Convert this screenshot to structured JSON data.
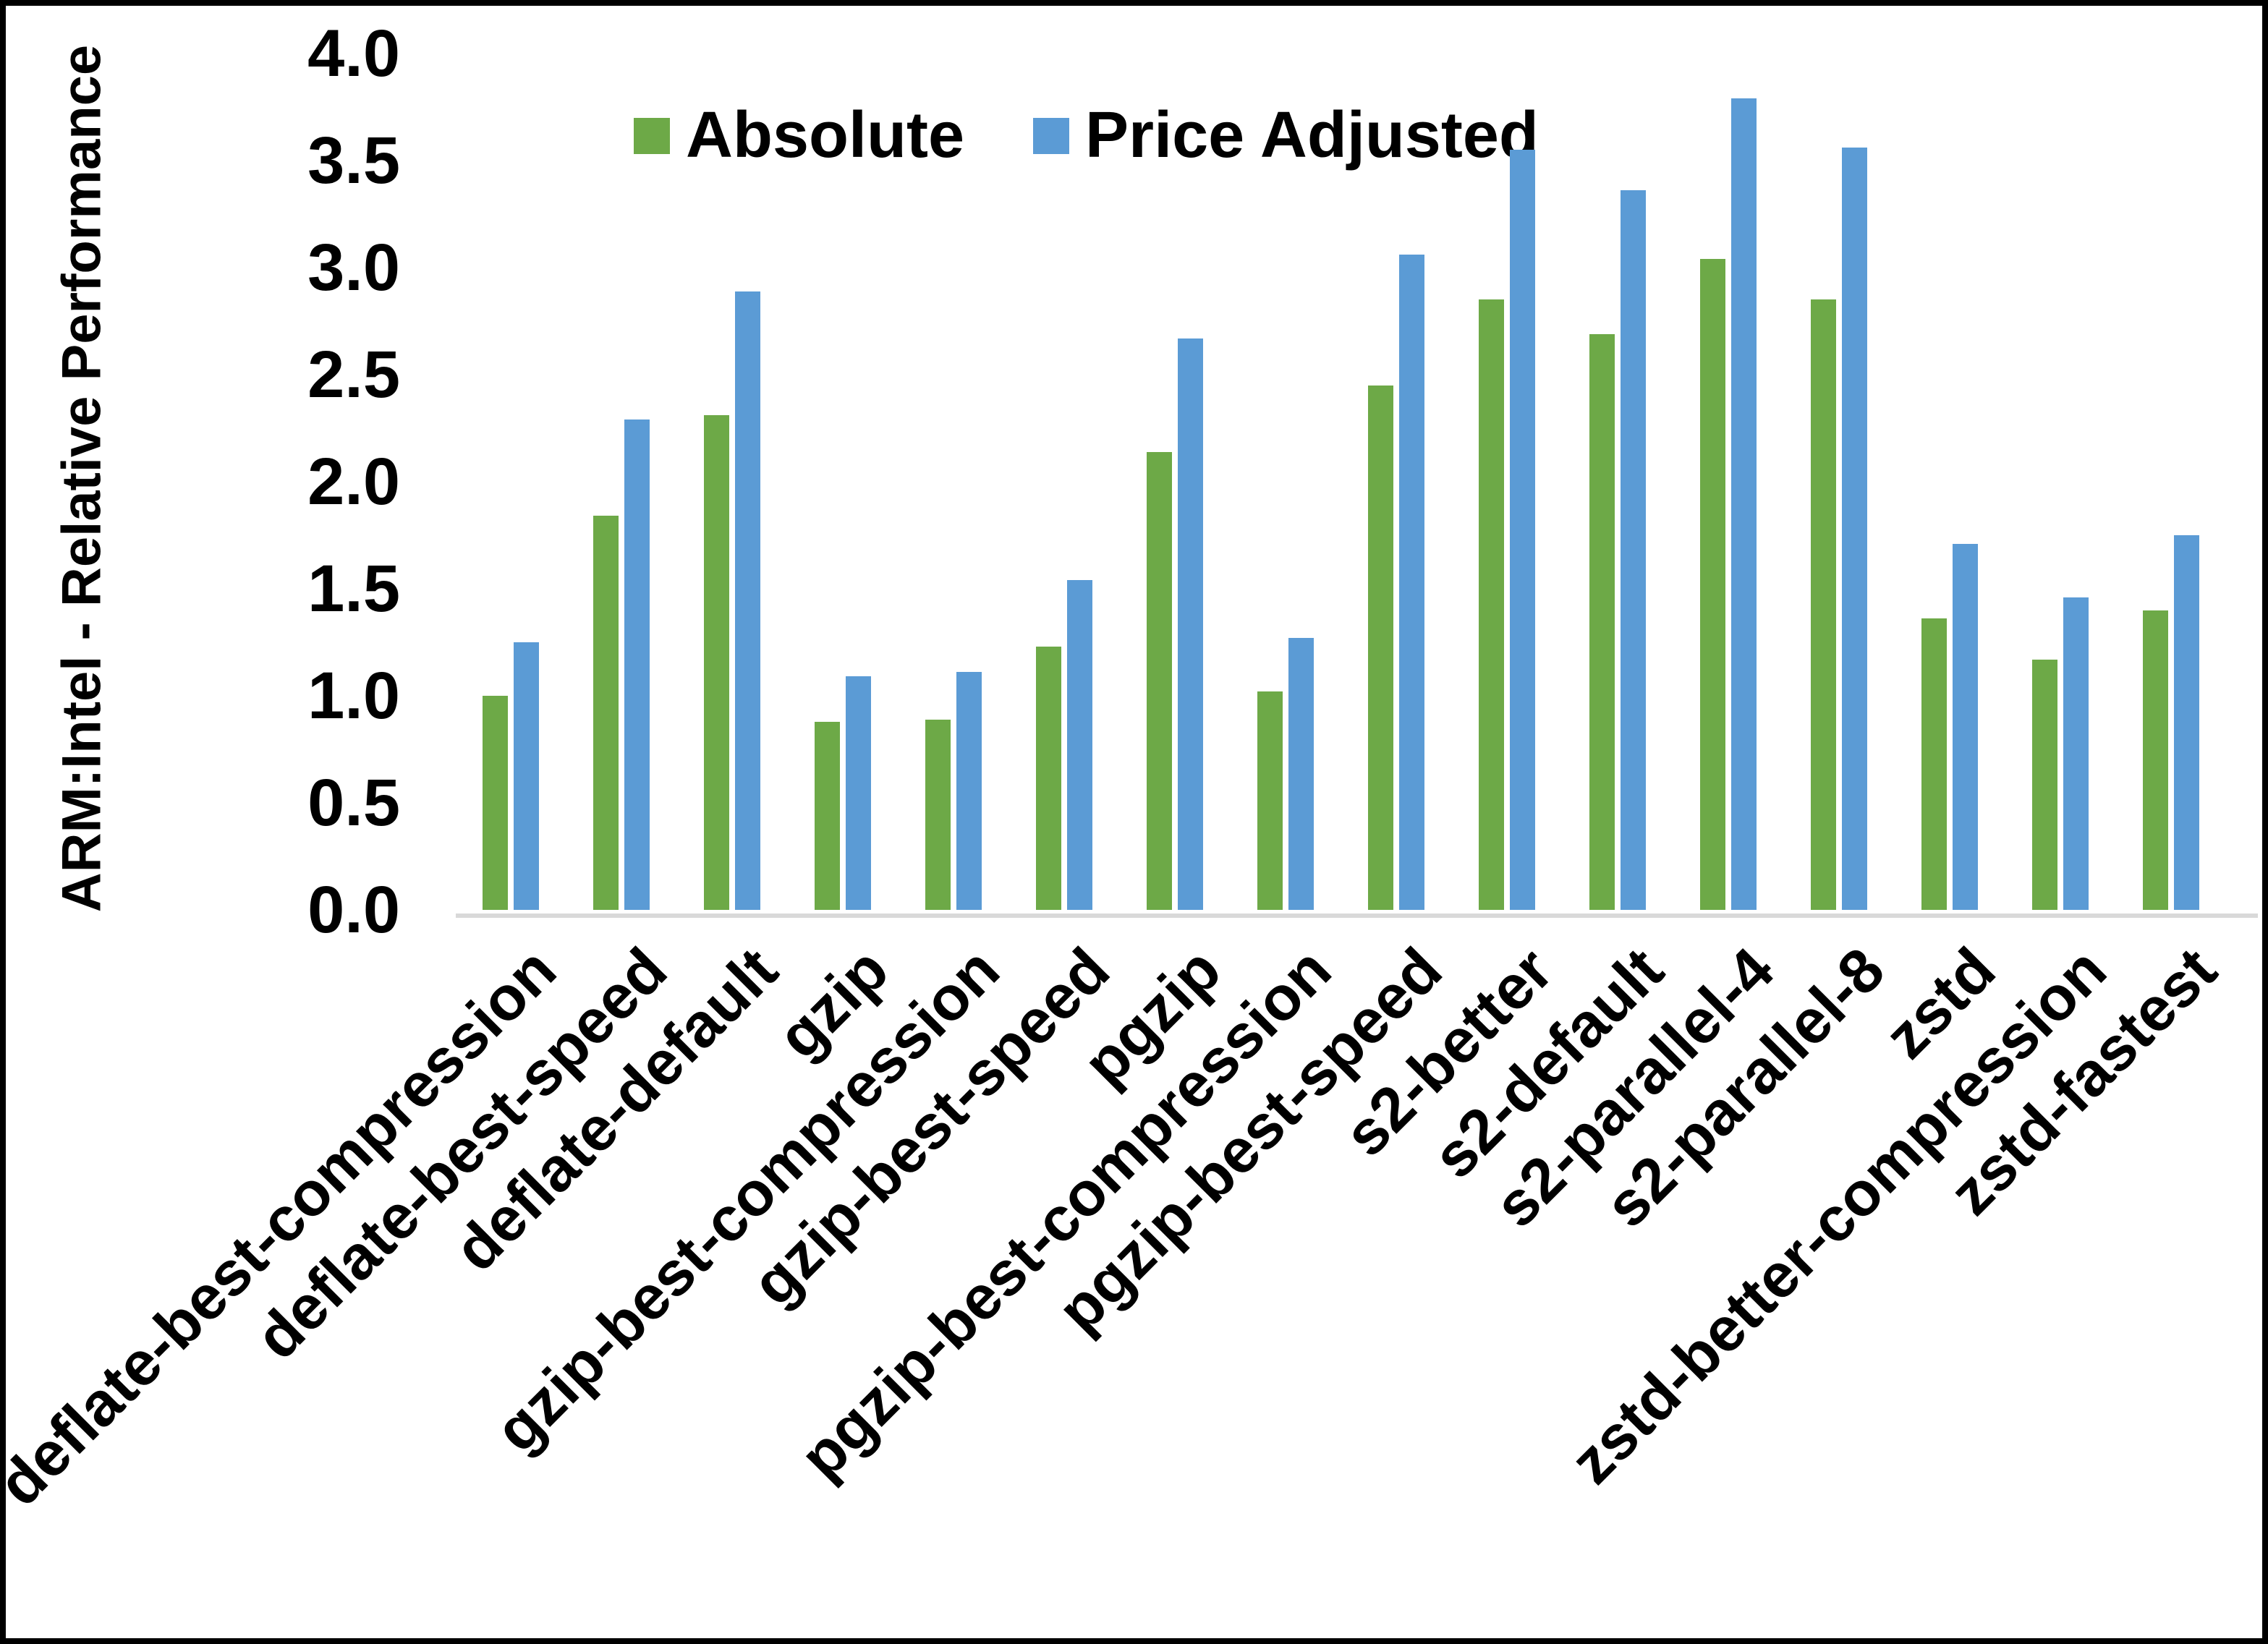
{
  "chart_data": {
    "type": "bar",
    "title": "",
    "ylabel": "ARM:Intel - Relative Performance",
    "xlabel": "",
    "ylim": [
      0.0,
      4.0
    ],
    "ytick_step": 0.5,
    "yticks": [
      "0.0",
      "0.5",
      "1.0",
      "1.5",
      "2.0",
      "2.5",
      "3.0",
      "3.5",
      "4.0"
    ],
    "grid": false,
    "legend_position": "top-center-inside",
    "background_color": "#FFFFFF",
    "axis_line_color": "#D9D9D9",
    "text_color": "#000000",
    "categories": [
      "deflate-best-compression",
      "deflate-best-speed",
      "deflate-default",
      "gzip",
      "gzip-best-compression",
      "gzip-best-speed",
      "pgzip",
      "pgzip-best-compression",
      "pgzip-best-speed",
      "s2-better",
      "s2-default",
      "s2-parallel-4",
      "s2-parallel-8",
      "zstd",
      "zstd-better-compression",
      "zstd-fastest"
    ],
    "series": [
      {
        "name": "Absolute",
        "color": "#6DA947",
        "values": [
          1.0,
          1.84,
          2.31,
          0.88,
          0.89,
          1.23,
          2.14,
          1.02,
          2.45,
          2.85,
          2.69,
          3.04,
          2.85,
          1.36,
          1.17,
          1.4
        ]
      },
      {
        "name": "Price Adjusted",
        "color": "#5B9BD5",
        "values": [
          1.25,
          2.29,
          2.89,
          1.09,
          1.11,
          1.54,
          2.67,
          1.27,
          3.06,
          3.55,
          3.36,
          3.79,
          3.56,
          1.71,
          1.46,
          1.75
        ]
      }
    ]
  }
}
